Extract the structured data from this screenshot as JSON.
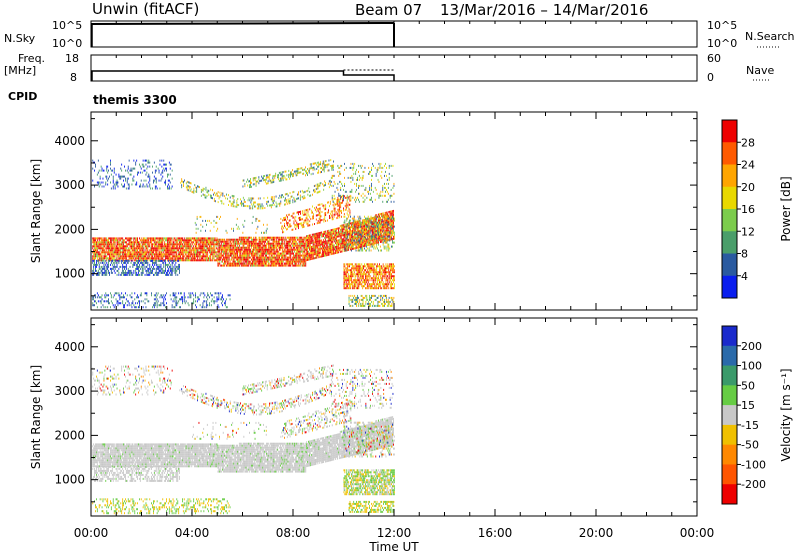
{
  "header": {
    "station": "Unwin (fitACF)",
    "beam": "Beam 07",
    "dates": "13/Mar/2016 – 14/Mar/2016"
  },
  "panels": {
    "nsky_label": "N.Sky",
    "nsky_ticks": [
      "10^5",
      "10^0"
    ],
    "nsearch_label": "N.Search",
    "nsearch_ticks": [
      "10^5",
      "10^0"
    ],
    "freq_label_1": "Freq.",
    "freq_label_2": "[MHz]",
    "freq_ticks": [
      "18",
      "8"
    ],
    "nave_label": "Nave",
    "nave_ticks": [
      "60",
      "0"
    ],
    "cpid_label": "CPID",
    "cpid_value": "themis 3300"
  },
  "chart_data": [
    {
      "type": "heatmap",
      "name": "power-panel",
      "ylabel": "Slant Range [km]",
      "yticks": [
        1000,
        2000,
        3000,
        4000
      ],
      "ylim": [
        180,
        4650
      ],
      "xlim": [
        0,
        24
      ],
      "colorbar": {
        "label": "Power [dB]",
        "ticks": [
          "28",
          "24",
          "20",
          "16",
          "12",
          "8",
          "4"
        ],
        "colors": [
          "#ee0000",
          "#ff5a00",
          "#ffa500",
          "#e8d800",
          "#7ccc4c",
          "#4a9e6a",
          "#2a5aa0",
          "#0a1eee"
        ]
      }
    },
    {
      "type": "heatmap",
      "name": "velocity-panel",
      "ylabel": "Slant Range [km]",
      "yticks": [
        1000,
        2000,
        3000,
        4000
      ],
      "ylim": [
        180,
        4650
      ],
      "xlim": [
        0,
        24
      ],
      "colorbar": {
        "label": "Velocity [m s⁻¹]",
        "ticks": [
          "200",
          "100",
          "50",
          "15",
          "-15",
          "-50",
          "-100",
          "-200"
        ],
        "colors": [
          "#1a2acc",
          "#2a6aaa",
          "#3a9a6a",
          "#66cc44",
          "#c8c8c8",
          "#f0c000",
          "#ff8800",
          "#ff5500",
          "#ee0000"
        ]
      }
    }
  ],
  "xaxis": {
    "label": "Time UT",
    "ticks": [
      "00:00",
      "04:00",
      "08:00",
      "12:00",
      "16:00",
      "20:00",
      "00:00"
    ]
  }
}
